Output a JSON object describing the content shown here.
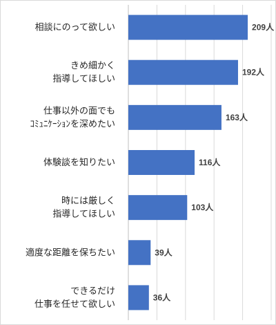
{
  "chart_data": {
    "type": "bar",
    "orientation": "horizontal",
    "categories": [
      [
        "相談にのって欲しい"
      ],
      [
        "きめ細かく",
        "指導してほしい"
      ],
      [
        "仕事以外の面でも",
        "ｺﾐｭﾆｹｰｼｮﾝを深めたい"
      ],
      [
        "体験談を知りたい"
      ],
      [
        "時には厳しく",
        "指導してほしい"
      ],
      [
        "適度な距離を保ちたい"
      ],
      [
        "できるだけ",
        "仕事を任せて欲しい"
      ]
    ],
    "values": [
      209,
      192,
      163,
      116,
      103,
      39,
      36
    ],
    "value_labels": [
      "209人",
      "192人",
      "163人",
      "116人",
      "103人",
      "39人",
      "36人"
    ],
    "xlim": [
      0,
      250
    ],
    "grid": true,
    "bar_color": "#4472c4"
  }
}
